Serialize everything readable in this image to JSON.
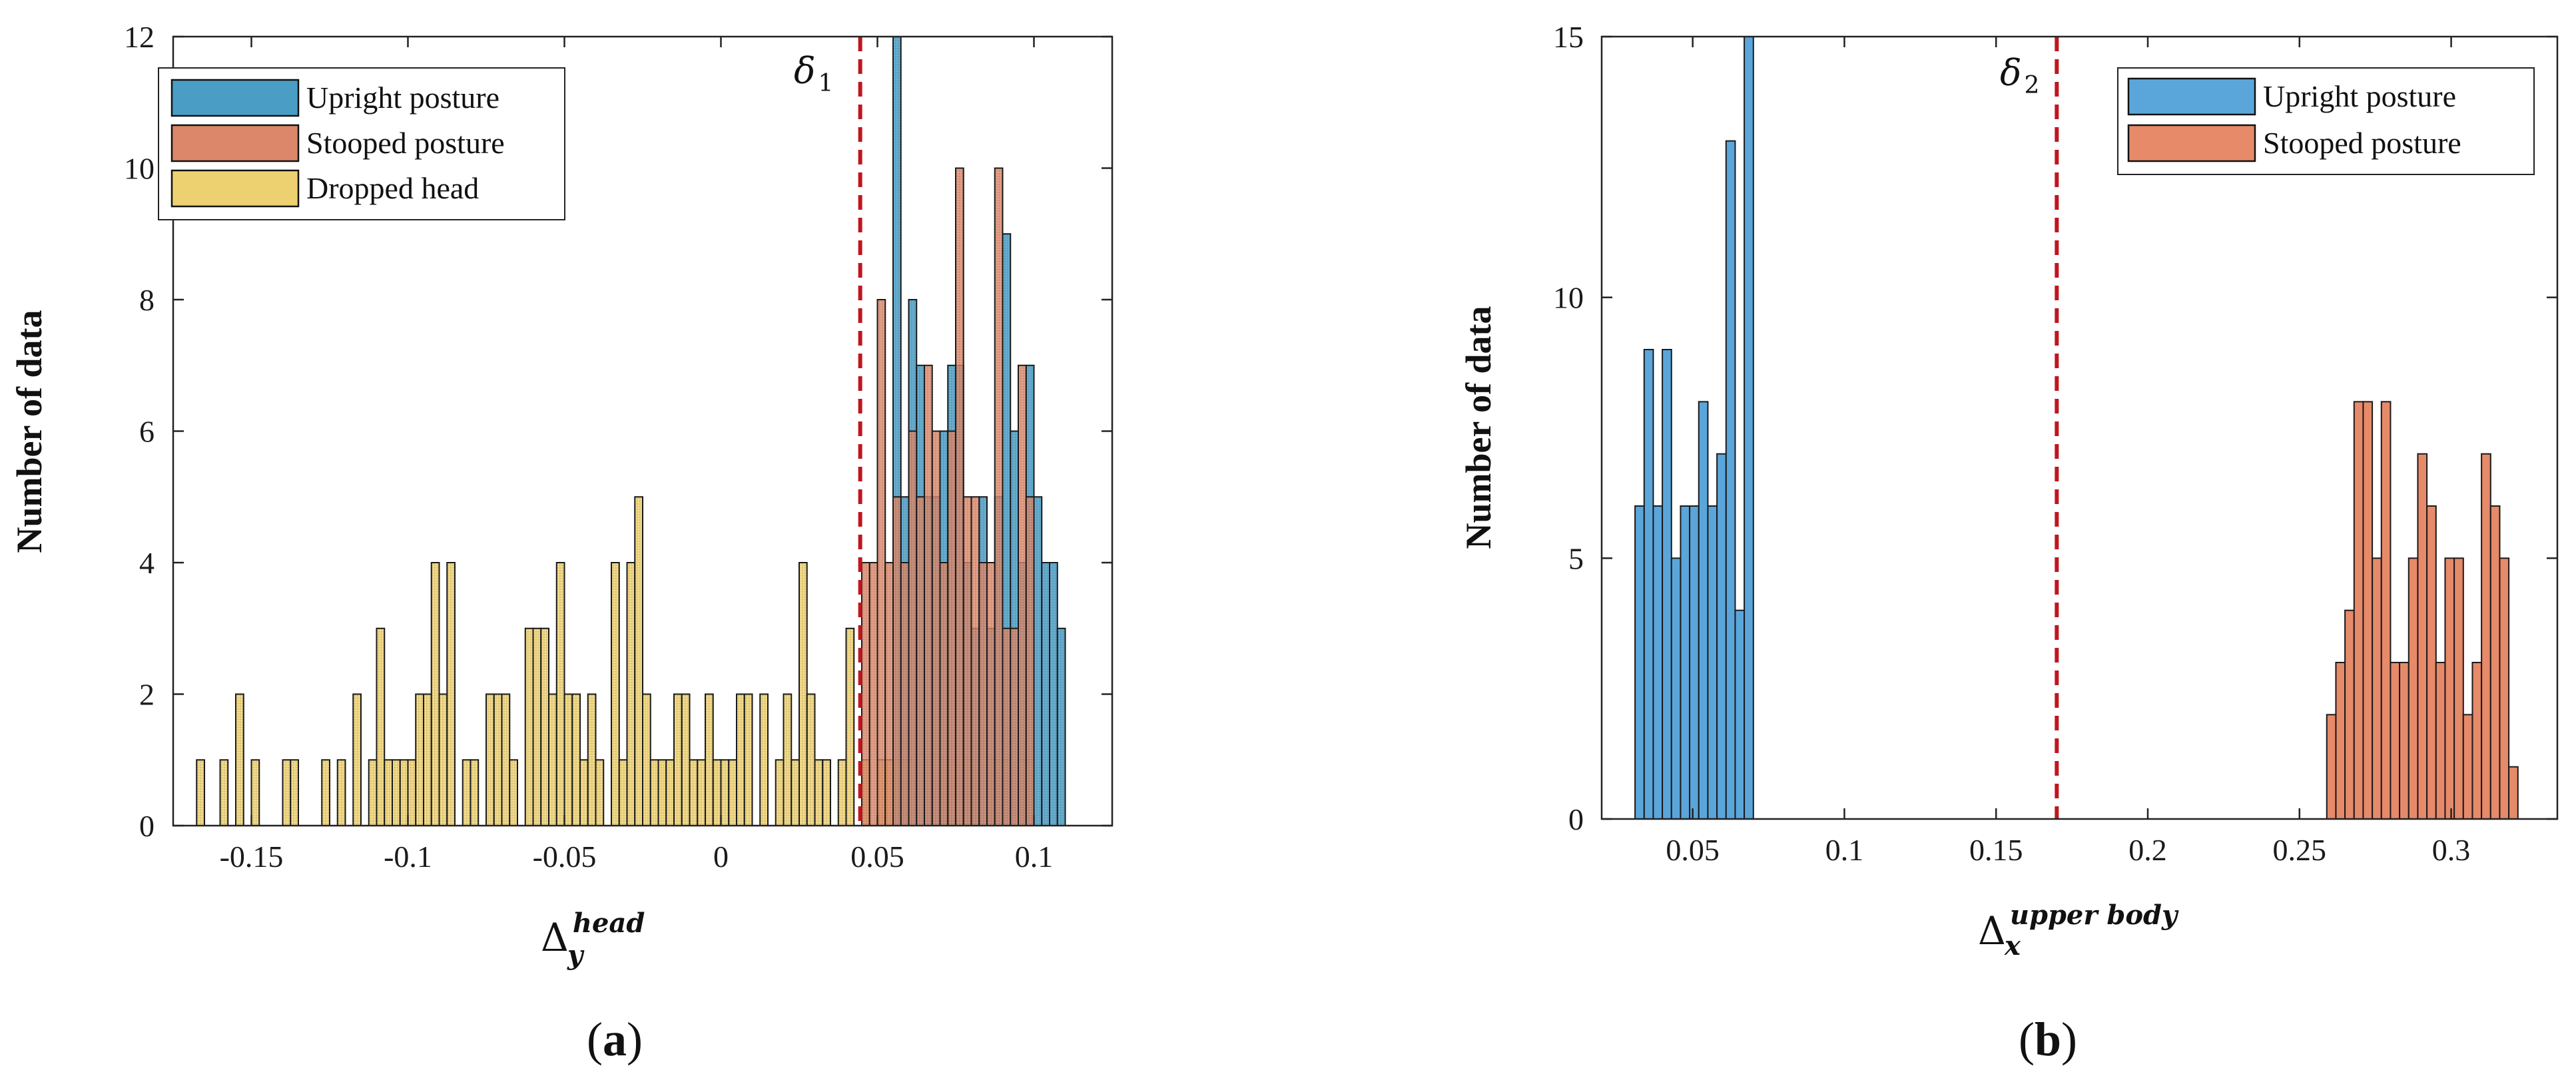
{
  "chart_data": [
    {
      "type": "histogram",
      "panel_label": "a",
      "ylabel": "Number of data",
      "xlabel_symbol": "Δ",
      "xlabel_sub": "y",
      "xlabel_sup": "head",
      "xlim": [
        -0.175,
        0.125
      ],
      "ylim": [
        0,
        12
      ],
      "xticks": [
        -0.15,
        -0.1,
        -0.05,
        0,
        0.05,
        0.1
      ],
      "xtick_labels": [
        "-0.15",
        "-0.1",
        "-0.05",
        "0",
        "0.05",
        "0.1"
      ],
      "yticks": [
        0,
        2,
        4,
        6,
        8,
        10,
        12
      ],
      "ytick_labels": [
        "0",
        "2",
        "4",
        "6",
        "8",
        "10",
        "12"
      ],
      "bin_width": 0.0025,
      "threshold": {
        "x": 0.0445,
        "symbol": "δ",
        "sub": "1",
        "color": "#c0161e"
      },
      "legend_position": "top-left",
      "series": [
        {
          "name": "Dropped head",
          "color": "#edd171",
          "bin_starts": [
            -0.1675,
            -0.16,
            -0.155,
            -0.15,
            -0.14,
            -0.1375,
            -0.1275,
            -0.1225,
            -0.1175,
            -0.1125,
            -0.11,
            -0.1075,
            -0.105,
            -0.1025,
            -0.1,
            -0.0975,
            -0.095,
            -0.0925,
            -0.09,
            -0.0875,
            -0.0825,
            -0.08,
            -0.075,
            -0.0725,
            -0.07,
            -0.0675,
            -0.0625,
            -0.06,
            -0.0575,
            -0.055,
            -0.0525,
            -0.05,
            -0.0475,
            -0.045,
            -0.0425,
            -0.04,
            -0.035,
            -0.0325,
            -0.03,
            -0.0275,
            -0.025,
            -0.0225,
            -0.02,
            -0.0175,
            -0.015,
            -0.0125,
            -0.01,
            -0.0075,
            -0.005,
            -0.0025,
            0.0,
            0.0025,
            0.005,
            0.0075,
            0.0125,
            0.0175,
            0.02,
            0.0225,
            0.025,
            0.0275,
            0.03,
            0.0325,
            0.0375,
            0.04,
            0.045,
            0.05,
            0.0525,
            0.055,
            0.0575,
            0.06,
            0.065,
            0.07,
            0.0725,
            0.0775,
            0.08,
            0.085,
            0.0875,
            0.09,
            0.095,
            0.0975
          ],
          "counts": [
            1,
            1,
            2,
            1,
            1,
            1,
            1,
            1,
            2,
            1,
            3,
            1,
            1,
            1,
            1,
            2,
            2,
            4,
            2,
            4,
            1,
            1,
            2,
            2,
            2,
            1,
            3,
            3,
            3,
            2,
            4,
            2,
            2,
            1,
            2,
            1,
            4,
            1,
            4,
            5,
            2,
            1,
            1,
            1,
            2,
            2,
            1,
            1,
            2,
            1,
            1,
            1,
            2,
            2,
            2,
            1,
            2,
            1,
            4,
            2,
            1,
            1,
            1,
            3,
            1,
            1,
            1,
            1,
            1,
            1,
            1,
            1,
            1,
            1,
            1,
            1,
            1,
            1,
            1,
            1
          ]
        },
        {
          "name": "Upright posture",
          "color": "#4a9ec5",
          "bin_starts": [
            0.055,
            0.0575,
            0.06,
            0.0625,
            0.065,
            0.0675,
            0.07,
            0.0725,
            0.075,
            0.0775,
            0.08,
            0.0825,
            0.085,
            0.0875,
            0.09,
            0.0925,
            0.095,
            0.0975,
            0.1,
            0.1025,
            0.105,
            0.1075
          ],
          "counts": [
            12,
            5,
            8,
            7,
            5,
            5,
            6,
            7,
            7,
            4,
            3,
            5,
            3,
            5,
            9,
            6,
            4,
            7,
            5,
            4,
            4,
            3
          ]
        },
        {
          "name": "Stooped posture",
          "color": "#dc876a",
          "bin_starts": [
            0.045,
            0.0475,
            0.05,
            0.0525,
            0.055,
            0.0575,
            0.06,
            0.0625,
            0.065,
            0.0675,
            0.07,
            0.0725,
            0.075,
            0.0775,
            0.08,
            0.0825,
            0.085,
            0.0875,
            0.09,
            0.0925,
            0.095,
            0.0975
          ],
          "counts": [
            4,
            4,
            8,
            4,
            5,
            4,
            6,
            5,
            7,
            6,
            4,
            6,
            10,
            5,
            5,
            4,
            4,
            10,
            3,
            3,
            7,
            5
          ]
        }
      ]
    },
    {
      "type": "histogram",
      "panel_label": "b",
      "ylabel": "Number of data",
      "xlabel_symbol": "Δ",
      "xlabel_sub": "x",
      "xlabel_sup": "upper body",
      "xlim": [
        0.02,
        0.335
      ],
      "ylim": [
        0,
        15
      ],
      "xticks": [
        0.05,
        0.1,
        0.15,
        0.2,
        0.25,
        0.3
      ],
      "xtick_labels": [
        "0.05",
        "0.1",
        "0.15",
        "0.2",
        "0.25",
        "0.3"
      ],
      "yticks": [
        0,
        5,
        10,
        15
      ],
      "ytick_labels": [
        "0",
        "5",
        "10",
        "15"
      ],
      "bin_width": 0.003,
      "threshold": {
        "x": 0.17,
        "symbol": "δ",
        "sub": "2",
        "color": "#c0161e"
      },
      "legend_position": "top-right",
      "series": [
        {
          "name": "Upright posture",
          "color": "#5aa6db",
          "bin_starts": [
            0.031,
            0.034,
            0.037,
            0.04,
            0.043,
            0.046,
            0.049,
            0.052,
            0.055,
            0.058,
            0.061,
            0.064,
            0.067
          ],
          "counts": [
            6,
            9,
            6,
            9,
            5,
            6,
            6,
            8,
            6,
            7,
            13,
            4,
            15
          ]
        },
        {
          "name": "Stooped posture",
          "color": "#e68a6a",
          "bin_starts": [
            0.259,
            0.262,
            0.265,
            0.268,
            0.271,
            0.274,
            0.277,
            0.28,
            0.283,
            0.286,
            0.289,
            0.292,
            0.295,
            0.298,
            0.301,
            0.304,
            0.307,
            0.31,
            0.313,
            0.316,
            0.319
          ],
          "counts": [
            2,
            3,
            4,
            8,
            8,
            5,
            8,
            3,
            3,
            5,
            7,
            6,
            3,
            5,
            5,
            2,
            3,
            7,
            6,
            5,
            1
          ]
        }
      ]
    }
  ],
  "captions": [
    "a",
    "b"
  ]
}
